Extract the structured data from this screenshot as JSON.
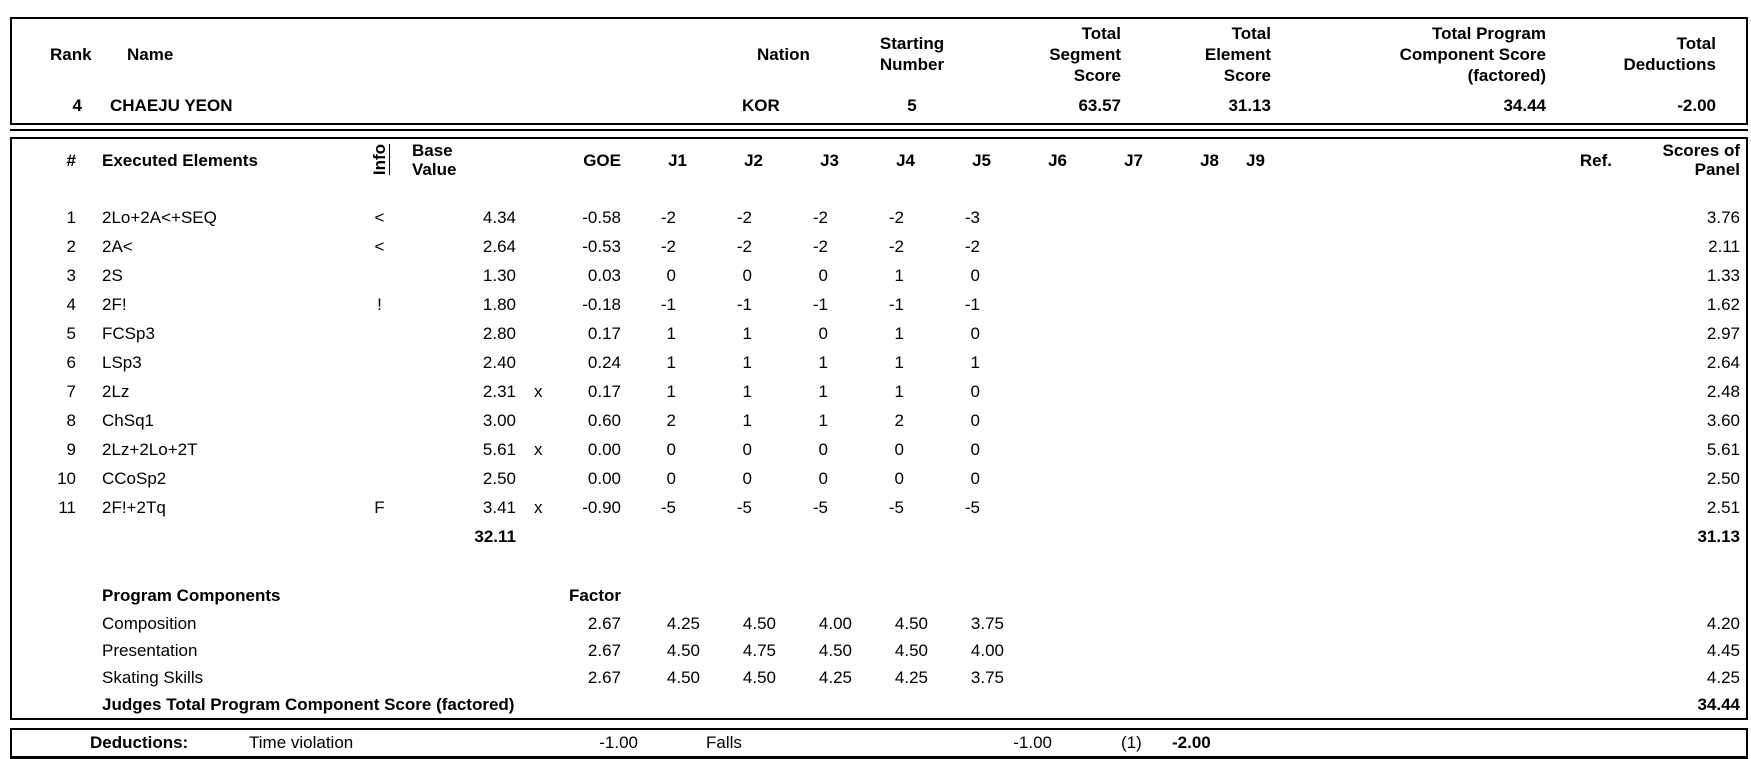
{
  "top": {
    "headers": {
      "rank": "Rank",
      "name": "Name",
      "nation": "Nation",
      "starting": [
        "Starting",
        "Number"
      ],
      "segment": [
        "Total",
        "Segment",
        "Score"
      ],
      "element": [
        "Total",
        "Element",
        "Score"
      ],
      "program": [
        "Total Program",
        "Component Score",
        "(factored)"
      ],
      "deductions": [
        "Total",
        "Deductions"
      ]
    },
    "values": {
      "rank": "4",
      "name": "CHAEJU YEON",
      "nation": "KOR",
      "starting": "5",
      "segment": "63.57",
      "element": "31.13",
      "program": "34.44",
      "deductions": "-2.00"
    }
  },
  "elements": {
    "headers": {
      "num": "#",
      "name": "Executed Elements",
      "info": "Info",
      "base": [
        "Base",
        "Value"
      ],
      "goe": "GOE",
      "judges": [
        "J1",
        "J2",
        "J3",
        "J4",
        "J5",
        "J6",
        "J7",
        "J8",
        "J9"
      ],
      "ref": "Ref.",
      "panel": [
        "Scores of",
        "Panel"
      ]
    },
    "rows": [
      {
        "num": "1",
        "name": "2Lo+2A<+SEQ",
        "info": "<",
        "base": "4.34",
        "x": "",
        "goe": "-0.58",
        "j": [
          "-2",
          "-2",
          "-2",
          "-2",
          "-3"
        ],
        "panel": "3.76"
      },
      {
        "num": "2",
        "name": "2A<",
        "info": "<",
        "base": "2.64",
        "x": "",
        "goe": "-0.53",
        "j": [
          "-2",
          "-2",
          "-2",
          "-2",
          "-2"
        ],
        "panel": "2.11"
      },
      {
        "num": "3",
        "name": "2S",
        "info": "",
        "base": "1.30",
        "x": "",
        "goe": "0.03",
        "j": [
          "0",
          "0",
          "0",
          "1",
          "0"
        ],
        "panel": "1.33"
      },
      {
        "num": "4",
        "name": "2F!",
        "info": "!",
        "base": "1.80",
        "x": "",
        "goe": "-0.18",
        "j": [
          "-1",
          "-1",
          "-1",
          "-1",
          "-1"
        ],
        "panel": "1.62"
      },
      {
        "num": "5",
        "name": "FCSp3",
        "info": "",
        "base": "2.80",
        "x": "",
        "goe": "0.17",
        "j": [
          "1",
          "1",
          "0",
          "1",
          "0"
        ],
        "panel": "2.97"
      },
      {
        "num": "6",
        "name": "LSp3",
        "info": "",
        "base": "2.40",
        "x": "",
        "goe": "0.24",
        "j": [
          "1",
          "1",
          "1",
          "1",
          "1"
        ],
        "panel": "2.64"
      },
      {
        "num": "7",
        "name": "2Lz",
        "info": "",
        "base": "2.31",
        "x": "x",
        "goe": "0.17",
        "j": [
          "1",
          "1",
          "1",
          "1",
          "0"
        ],
        "panel": "2.48"
      },
      {
        "num": "8",
        "name": "ChSq1",
        "info": "",
        "base": "3.00",
        "x": "",
        "goe": "0.60",
        "j": [
          "2",
          "1",
          "1",
          "2",
          "0"
        ],
        "panel": "3.60"
      },
      {
        "num": "9",
        "name": "2Lz+2Lo+2T",
        "info": "",
        "base": "5.61",
        "x": "x",
        "goe": "0.00",
        "j": [
          "0",
          "0",
          "0",
          "0",
          "0"
        ],
        "panel": "5.61"
      },
      {
        "num": "10",
        "name": "CCoSp2",
        "info": "",
        "base": "2.50",
        "x": "",
        "goe": "0.00",
        "j": [
          "0",
          "0",
          "0",
          "0",
          "0"
        ],
        "panel": "2.50"
      },
      {
        "num": "11",
        "name": "2F!+2Tq",
        "info": "F",
        "base": "3.41",
        "x": "x",
        "goe": "-0.90",
        "j": [
          "-5",
          "-5",
          "-5",
          "-5",
          "-5"
        ],
        "panel": "2.51"
      }
    ],
    "total_base": "32.11",
    "total_panel": "31.13"
  },
  "components": {
    "title": "Program Components",
    "factor_label": "Factor",
    "rows": [
      {
        "name": "Composition",
        "factor": "2.67",
        "j": [
          "4.25",
          "4.50",
          "4.00",
          "4.50",
          "3.75"
        ],
        "panel": "4.20"
      },
      {
        "name": "Presentation",
        "factor": "2.67",
        "j": [
          "4.50",
          "4.75",
          "4.50",
          "4.50",
          "4.00"
        ],
        "panel": "4.45"
      },
      {
        "name": "Skating Skills",
        "factor": "2.67",
        "j": [
          "4.50",
          "4.50",
          "4.25",
          "4.25",
          "3.75"
        ],
        "panel": "4.25"
      }
    ],
    "total_label": "Judges Total Program Component Score (factored)",
    "total_value": "34.44"
  },
  "deductions": {
    "label": "Deductions:",
    "items": [
      {
        "name": "Time violation",
        "value": "-1.00",
        "note": ""
      },
      {
        "name": "Falls",
        "value": "-1.00",
        "note": "(1)"
      }
    ],
    "total": "-2.00"
  }
}
